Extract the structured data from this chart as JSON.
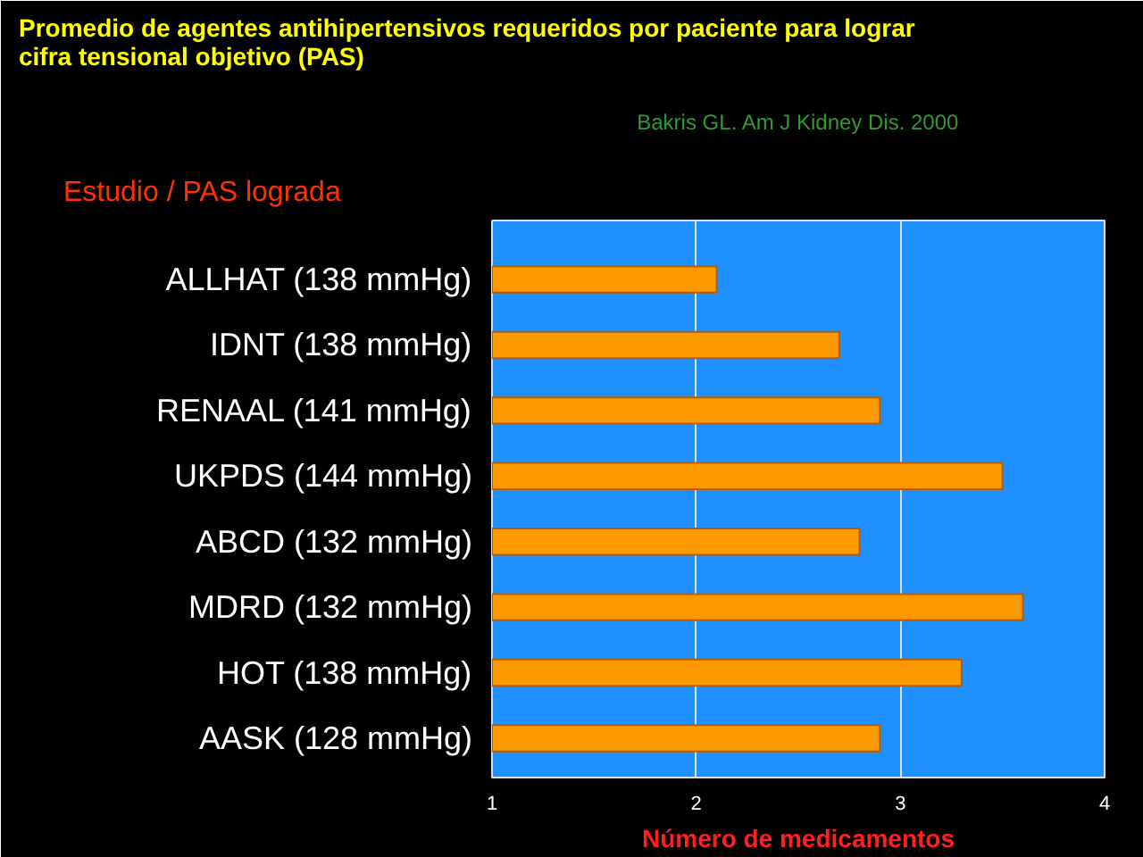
{
  "chart_data": {
    "type": "bar",
    "orientation": "horizontal",
    "title": "Promedio de agentes antihipertensivos requeridos por paciente para lograr cifra tensional objetivo (PAS)",
    "subtitle": "Bakris GL. Am J Kidney Dis. 2000",
    "annotations": [
      "Estudio / PAS lograda"
    ],
    "xlabel": "Número de medicamentos",
    "categories": [
      "ALLHAT (138 mmHg)",
      "IDNT (138 mmHg)",
      "RENAAL (141 mmHg)",
      "UKPDS (144 mmHg)",
      "ABCD (132 mmHg)",
      "MDRD (132 mmHg)",
      "HOT (138 mmHg)",
      "AASK (128 mmHg)"
    ],
    "values": [
      2.1,
      2.7,
      2.9,
      3.5,
      2.8,
      3.6,
      3.3,
      2.9
    ],
    "color": "#ff9900",
    "xlim": [
      1,
      4
    ],
    "xticks": [
      1,
      2,
      3,
      4
    ],
    "grid": "x"
  }
}
